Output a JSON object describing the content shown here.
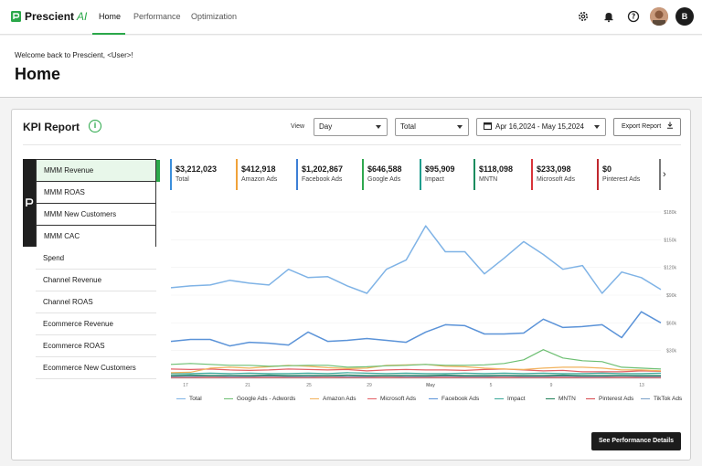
{
  "app": {
    "brand": "Prescient",
    "brand_suffix": "AI"
  },
  "nav": {
    "tabs": [
      "Home",
      "Performance",
      "Optimization"
    ]
  },
  "user": {
    "initial": "B"
  },
  "header": {
    "welcome": "Welcome back to Prescient, <User>!",
    "title": "Home"
  },
  "kpi_report": {
    "title": "KPI Report",
    "info": "i",
    "view_label": "View",
    "view_select": "Day",
    "total_select": "Total",
    "date_range": "Apr 16,2024 - May 15,2024",
    "export_label": "Export Report",
    "details_button": "See Performance Details"
  },
  "metrics_grouped": [
    "MMM Revenue",
    "MMM ROAS",
    "MMM New Customers",
    "MMM CAC"
  ],
  "metrics_other": [
    "Spend",
    "Channel Revenue",
    "Channel ROAS",
    "Ecommerce Revenue",
    "Ecommerce ROAS",
    "Ecommerce New Customers"
  ],
  "kpis": [
    {
      "value": "$3,212,023",
      "label": "Total",
      "color": "#3b8fdc"
    },
    {
      "value": "$412,918",
      "label": "Amazon Ads",
      "color": "#f0a23a"
    },
    {
      "value": "$1,202,867",
      "label": "Facebook Ads",
      "color": "#3d7fd6"
    },
    {
      "value": "$646,588",
      "label": "Google Ads",
      "color": "#2fa84f"
    },
    {
      "value": "$95,909",
      "label": "Impact",
      "color": "#1f9d8d"
    },
    {
      "value": "$118,098",
      "label": "MNTN",
      "color": "#1a8c5e"
    },
    {
      "value": "$233,098",
      "label": "Microsoft Ads",
      "color": "#d9343a"
    },
    {
      "value": "$0",
      "label": "Pinterest Ads",
      "color": "#c0282e"
    },
    {
      "value": "",
      "label": "",
      "color": "#777777"
    }
  ],
  "chart_data": {
    "type": "line",
    "x_ticks": [
      "17",
      "21",
      "25",
      "29",
      "May",
      "5",
      "9",
      "13"
    ],
    "y_ticks": [
      "$180k",
      "$150k",
      "$120k",
      "$90k",
      "$60k",
      "$30k"
    ],
    "ylim": [
      0,
      180000
    ],
    "series": [
      {
        "name": "Total",
        "color": "#7fb3e6",
        "values": [
          98000,
          100000,
          101000,
          106000,
          103000,
          101000,
          118000,
          109000,
          110000,
          100000,
          92000,
          118000,
          128000,
          165000,
          137000,
          137000,
          113000,
          130000,
          148000,
          134000,
          118000,
          122000,
          92000,
          115000,
          109000,
          96000
        ]
      },
      {
        "name": "Google Ads - Adwords",
        "color": "#6dbf72",
        "values": [
          15000,
          16000,
          15000,
          14000,
          14000,
          13000,
          13500,
          14000,
          14000,
          12000,
          12500,
          13500,
          14000,
          15000,
          14000,
          14000,
          14500,
          16000,
          20000,
          31000,
          22000,
          19000,
          18000,
          12000,
          11000,
          10000
        ]
      },
      {
        "name": "Amazon Ads",
        "color": "#f2b25c",
        "values": [
          6000,
          6500,
          11000,
          12000,
          11000,
          12500,
          14000,
          13000,
          11500,
          10500,
          11000,
          14000,
          14500,
          15000,
          13000,
          12500,
          11000,
          10000,
          9500,
          11000,
          12000,
          12000,
          11000,
          9000,
          9000,
          8000
        ]
      },
      {
        "name": "Microsoft Ads",
        "color": "#e36065",
        "values": [
          10000,
          9500,
          10000,
          9000,
          8500,
          9000,
          10000,
          9500,
          9000,
          9500,
          8000,
          9000,
          9500,
          9000,
          9000,
          8500,
          9500,
          10000,
          9000,
          8000,
          8500,
          7000,
          7000,
          7000,
          8000,
          7500
        ]
      },
      {
        "name": "Facebook Ads",
        "color": "#5b93d8",
        "values": [
          40000,
          42000,
          42000,
          35000,
          39000,
          38000,
          36000,
          50000,
          40000,
          41000,
          43000,
          41000,
          39000,
          50000,
          58000,
          57000,
          48000,
          48000,
          49000,
          64000,
          55000,
          56000,
          58000,
          44000,
          72000,
          60000
        ]
      },
      {
        "name": "Impact",
        "color": "#3aa89a",
        "values": [
          5000,
          5000,
          5500,
          5000,
          5500,
          5000,
          5000,
          5500,
          5000,
          6000,
          5500,
          5000,
          5500,
          5000,
          5000,
          5500,
          5000,
          5500,
          5000,
          5500,
          5000,
          5000,
          5500,
          5000,
          5000,
          5500
        ]
      },
      {
        "name": "MNTN",
        "color": "#1e7f56",
        "values": [
          3000,
          3500,
          3000,
          3200,
          3000,
          3500,
          3000,
          3200,
          3000,
          3500,
          3000,
          3000,
          3200,
          3000,
          3500,
          3000,
          3000,
          3200,
          3000,
          3000,
          3500,
          3000,
          3000,
          3200,
          3000,
          3000
        ]
      },
      {
        "name": "Pinterest Ads",
        "color": "#d7474d",
        "values": [
          1000,
          1000,
          1000,
          1000,
          1000,
          1000,
          1000,
          1000,
          1000,
          1000,
          1000,
          1000,
          1000,
          1000,
          1000,
          1000,
          1000,
          1000,
          1000,
          1000,
          1000,
          1000,
          1000,
          1000,
          1000,
          1000
        ]
      },
      {
        "name": "TikTok Ads",
        "color": "#7aa0c8",
        "values": [
          2000,
          2000,
          2500,
          2000,
          2000,
          2500,
          2000,
          2000,
          2500,
          2000,
          2000,
          2500,
          2000,
          2000,
          2500,
          2000,
          2000,
          2500,
          2000,
          2000,
          2500,
          2000,
          2000,
          2500,
          2000,
          2000
        ]
      }
    ]
  }
}
